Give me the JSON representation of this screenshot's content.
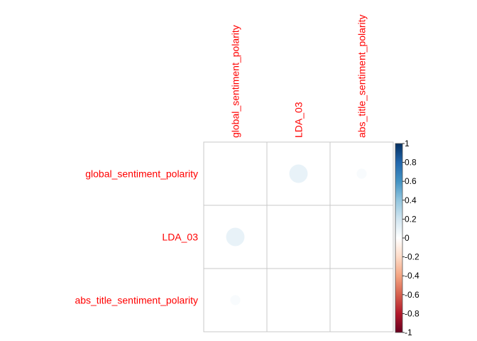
{
  "chart_data": {
    "type": "heatmap",
    "style": "corrplot-circle-upper",
    "variables": [
      "global_sentiment_polarity",
      "LDA_03",
      "abs_title_sentiment_polarity"
    ],
    "matrix": [
      [
        null,
        0.1,
        0.03
      ],
      [
        0.1,
        null,
        null
      ],
      [
        0.03,
        null,
        null
      ]
    ],
    "label_color": "#ff0000",
    "colorbar": {
      "range": [
        -1,
        1
      ],
      "ticks": [
        "1",
        "0.8",
        "0.6",
        "0.4",
        "0.2",
        "0",
        "-0.2",
        "-0.4",
        "-0.6",
        "-0.8",
        "-1"
      ],
      "colors": [
        "#67001F",
        "#B2182B",
        "#D6604D",
        "#F4A582",
        "#FDDBC7",
        "#FFFFFF",
        "#D1E5F0",
        "#92C5DE",
        "#4393C3",
        "#2166AC",
        "#053061"
      ]
    },
    "grid": true
  }
}
